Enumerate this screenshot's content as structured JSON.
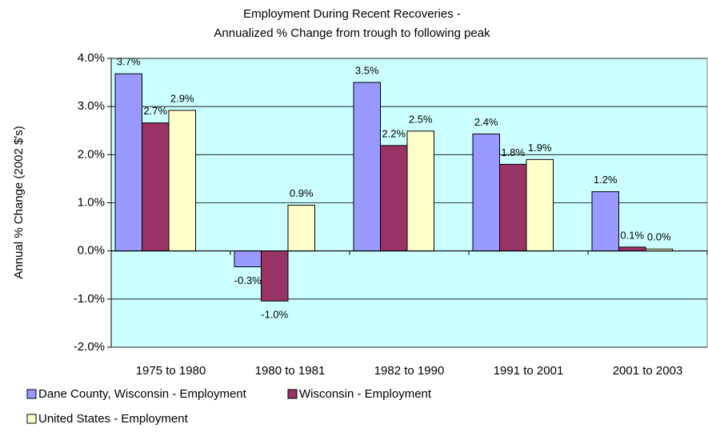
{
  "chart_data": {
    "type": "bar",
    "title": "Employment During Recent Recoveries -",
    "subtitle": "Annualized % Change from trough to following peak",
    "y_label": "Annual % Change (2002 $'s)",
    "categories": [
      "1975 to 1980",
      "1980 to 1981",
      "1982 to 1990",
      "1991 to 2001",
      "2001 to 2003"
    ],
    "series": [
      {
        "name": "Dane County, Wisconsin - Employment",
        "color": "#9999ff",
        "values": [
          3.68,
          -0.33,
          3.5,
          2.43,
          1.23
        ],
        "value_labels": [
          "3.7%",
          "-0.3%",
          "3.5%",
          "2.4%",
          "1.2%"
        ]
      },
      {
        "name": "Wisconsin - Employment",
        "color": "#993366",
        "values": [
          2.66,
          -1.04,
          2.19,
          1.8,
          0.08
        ],
        "value_labels": [
          "2.7%",
          "-1.0%",
          "2.2%",
          "1.8%",
          "0.1%"
        ]
      },
      {
        "name": "United States - Employment",
        "color": "#ffffcc",
        "values": [
          2.92,
          0.95,
          2.49,
          1.9,
          0.04
        ],
        "value_labels": [
          "2.9%",
          "0.9%",
          "2.5%",
          "1.9%",
          "0.0%"
        ]
      }
    ],
    "ylim": [
      -2,
      4
    ],
    "yticks": [
      {
        "value": -2,
        "label": "-2.0%"
      },
      {
        "value": -1,
        "label": "-1.0%"
      },
      {
        "value": 0,
        "label": "0.0%"
      },
      {
        "value": 1,
        "label": "1.0%"
      },
      {
        "value": 2,
        "label": "2.0%"
      },
      {
        "value": 3,
        "label": "3.0%"
      },
      {
        "value": 4,
        "label": "4.0%"
      }
    ],
    "grid": true,
    "background": "#ccffff",
    "legend": "bottom"
  }
}
